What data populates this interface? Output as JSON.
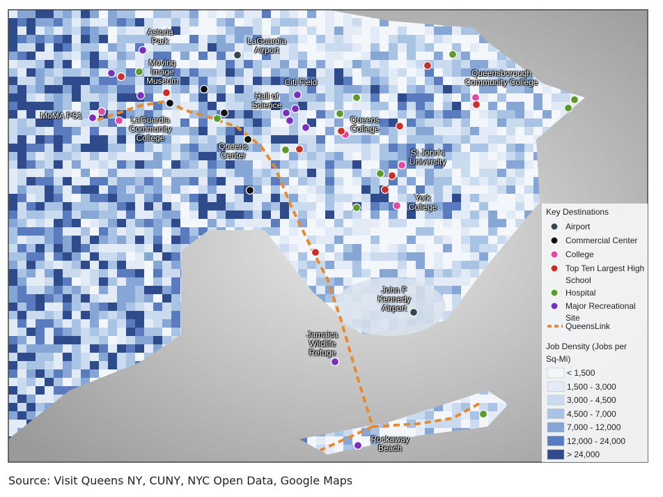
{
  "map": {
    "place_labels": [
      "Astoria Park",
      "LaGuardia Airport",
      "Moving Image Museum",
      "Citi Field",
      "Queensborough Community College",
      "Hall of Science",
      "MoMA PS1",
      "LaGuardia Community College",
      "Queens College",
      "Queens Center",
      "St John's University",
      "York College",
      "John F Kennedy Airport",
      "Jamaica Wildlife Refuge",
      "Rockaway Beach"
    ],
    "legend": {
      "title": "Key Destinations",
      "items": [
        "Airport",
        "Commercial Center",
        "College",
        "Top Ten Largest High School",
        "Hospital",
        "Major Recreational Site",
        "QueensLink"
      ],
      "density_title": "Job Density (Jobs per Sq-Mi)",
      "density_classes": [
        "< 1,500",
        "1,500 - 3,000",
        "3,000 - 4,500",
        "4,500 - 7,000",
        "7,000 - 12,000",
        "12,000 - 24,000",
        "> 24,000"
      ]
    }
  },
  "source": "Source: Visit Queens NY, CUNY, NYC Open Data, Google Maps"
}
